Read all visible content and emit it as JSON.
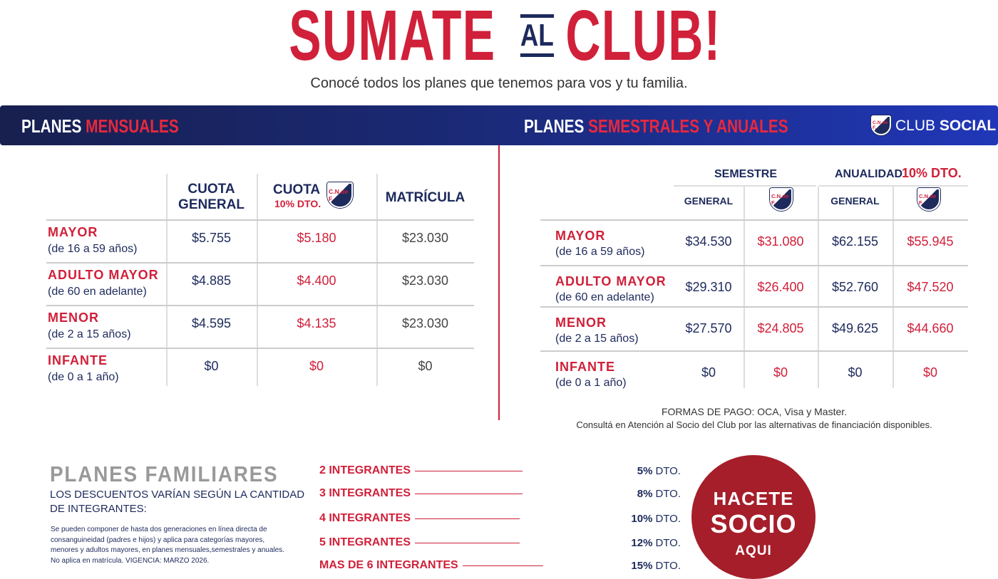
{
  "header": {
    "title": [
      "SUMATE",
      "AL",
      "CLUB!"
    ],
    "subtitle": "Conocé todos los planes que tenemos para vos y tu familia."
  },
  "banner": {
    "left": [
      "PLANES",
      "MENSUALES"
    ],
    "right": [
      "PLANES",
      "SEMESTRALES Y ANUALES"
    ],
    "brand": [
      "CLUB",
      "SOCIAL"
    ]
  },
  "logo": "C.N.de F.",
  "monthly": {
    "headers": [
      "CUOTA GENERAL",
      "CUOTA",
      "10% DTO.",
      "MATRÍCULA"
    ],
    "rows": [
      {
        "name": "MAYOR",
        "sub": "(de 16 a 59 años)",
        "values": [
          "$5.755",
          "$5.180",
          "$23.030"
        ]
      },
      {
        "name": "ADULTO MAYOR",
        "sub": "(de 60 en adelante)",
        "values": [
          "$4.885",
          "$4.400",
          "$23.030"
        ]
      },
      {
        "name": "MENOR",
        "sub": "(de 2 a 15 años)",
        "values": [
          "$4.595",
          "$4.135",
          "$23.030"
        ]
      },
      {
        "name": "INFANTE",
        "sub": "(de 0 a 1 año)",
        "values": [
          "$0",
          "$0",
          "$0"
        ]
      }
    ]
  },
  "semester": {
    "groups": [
      "SEMESTRE",
      "ANUALIDAD",
      "10% DTO."
    ],
    "subheaders": [
      "GENERAL",
      "GENERAL"
    ],
    "rows": [
      {
        "name": "MAYOR",
        "sub": "(de 16 a 59 años)",
        "values": [
          "$34.530",
          "$31.080",
          "$62.155",
          "$55.945"
        ]
      },
      {
        "name": "ADULTO MAYOR",
        "sub": "(de 60 en adelante)",
        "values": [
          "$29.310",
          "$26.400",
          "$52.760",
          "$47.520"
        ]
      },
      {
        "name": "MENOR",
        "sub": "(de 2 a 15 años)",
        "values": [
          "$27.570",
          "$24.805",
          "$49.625",
          "$44.660"
        ]
      },
      {
        "name": "INFANTE",
        "sub": "(de 0 a 1 año)",
        "values": [
          "$0",
          "$0",
          "$0",
          "$0"
        ]
      }
    ]
  },
  "payment": [
    "FORMAS DE PAGO: OCA, Visa y Master.",
    "Consultá en Atención al Socio del Club por las alternativas de financiación disponibles."
  ],
  "family": {
    "title": "PLANES FAMILIARES",
    "subtitle": [
      "LOS DESCUENTOS VARÍAN SEGÚN LA CANTIDAD",
      "DE INTEGRANTES:"
    ],
    "note": [
      "Se pueden componer de hasta dos generaciones en línea directa de",
      "consanguineidad  (padres e hijos)  y  aplica para categorías mayores,",
      "menores y adultos mayores, en planes mensuales,semestrales y anuales.",
      "No aplica en matrícula.  VIGENCIA: MARZO 2026."
    ],
    "discounts": [
      {
        "label": "2 INTEGRANTES",
        "pct": "5%",
        "dto": "DTO."
      },
      {
        "label": "3 INTEGRANTES",
        "pct": "8%",
        "dto": "DTO."
      },
      {
        "label": "4 INTEGRANTES",
        "pct": "10%",
        "dto": "DTO."
      },
      {
        "label": "5 INTEGRANTES",
        "pct": "12%",
        "dto": "DTO."
      },
      {
        "label": "MAS DE 6 INTEGRANTES",
        "pct": "15%",
        "dto": "DTO."
      }
    ]
  },
  "cta": [
    "HACETE",
    "SOCIO",
    "AQUI"
  ]
}
